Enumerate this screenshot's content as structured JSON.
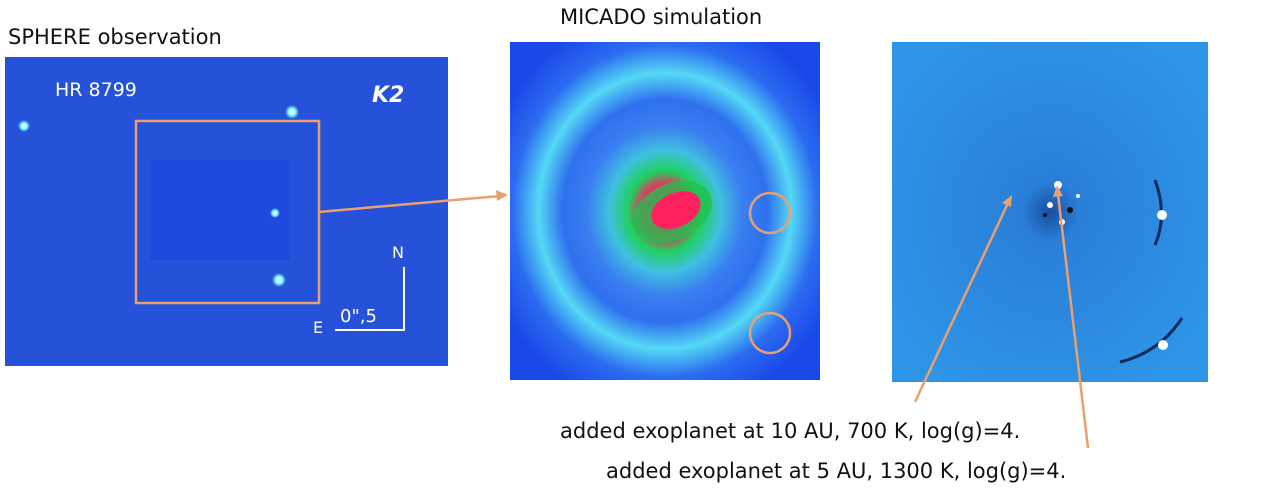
{
  "panels": [
    {
      "title": "SPHERE observation",
      "target": "HR 8799",
      "band": "K2",
      "north": "N",
      "east": "E",
      "scale": "0\",5"
    },
    {
      "title": "MICADO simulation"
    }
  ],
  "annotations": [
    "added exoplanet at 10 AU, 700 K, log(g)=4.",
    "added exoplanet at 5 AU, 1300 K, log(g)=4."
  ]
}
